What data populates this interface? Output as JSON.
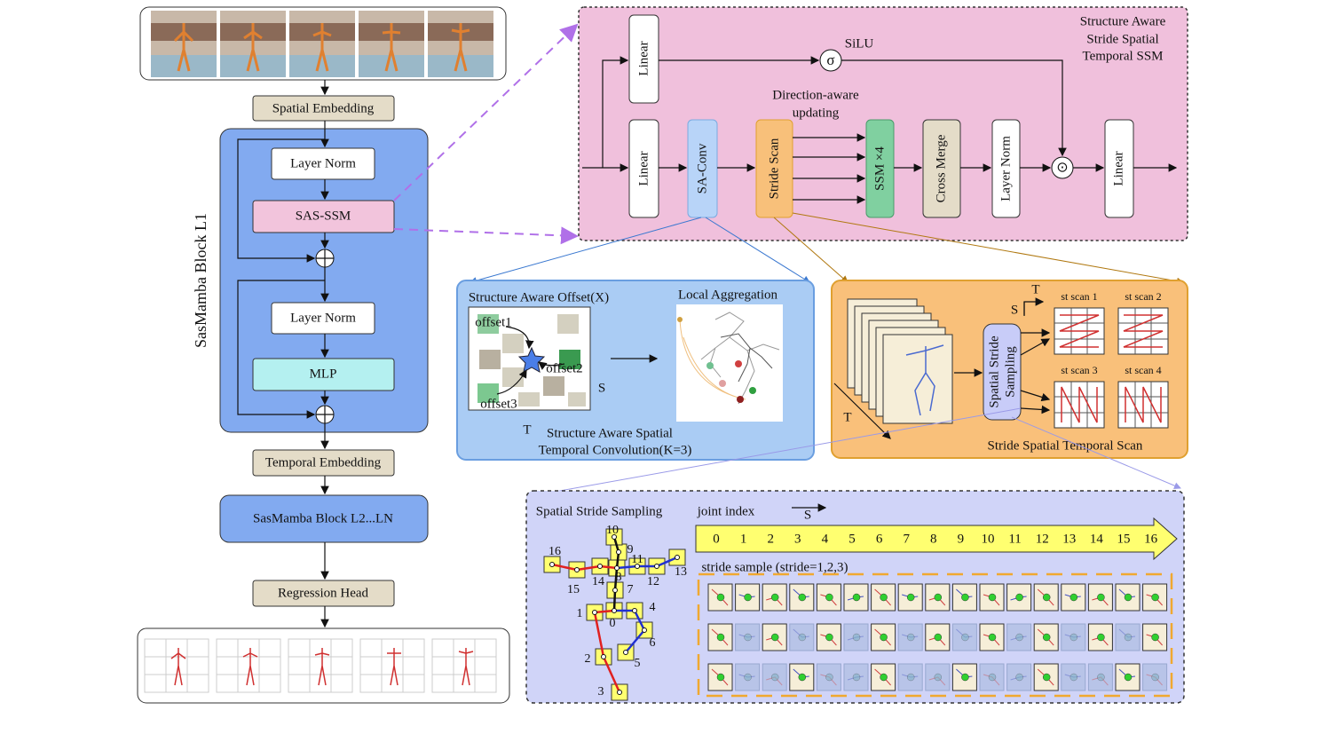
{
  "pipeline": {
    "spatial_embedding": "Spatial Embedding",
    "block_label": "SasMamba Block L1",
    "layer_norm_1": "Layer Norm",
    "sas_ssm": "SAS-SSM",
    "layer_norm_2": "Layer Norm",
    "mlp": "MLP",
    "temporal_embedding": "Temporal Embedding",
    "block_rest": "SasMamba Block L2...LN",
    "regression_head": "Regression Head"
  },
  "ssm_panel": {
    "title": [
      "Structure Aware",
      "Stride Spatial",
      "Temporal SSM"
    ],
    "linear_gate": "Linear",
    "sigma": "σ",
    "silu": "SiLU",
    "direction_note": [
      "Direction-aware",
      "updating"
    ],
    "linear_in": "Linear",
    "sa_conv": "SA-Conv",
    "stride_scan": "Stride Scan",
    "ssm": "SSM ×4",
    "cross_merge": "Cross Merge",
    "layer_norm": "Layer Norm",
    "product": "⊙",
    "linear_out": "Linear"
  },
  "conv_panel": {
    "offset_title": "Structure Aware Offset(X)",
    "aggregation_title": "Local Aggregation",
    "offsets": [
      "offset1",
      "offset2",
      "offset3"
    ],
    "s_axis": "S",
    "t_axis": "T",
    "caption": [
      "Structure Aware Spatial",
      "Temporal Convolution(K=3)"
    ]
  },
  "scan_panel": {
    "t_axis": "T",
    "s_axis": "S",
    "frames_axis": "T",
    "sampling": [
      "Spatial Stride",
      "Sampling"
    ],
    "scans": [
      "st scan 1",
      "st scan 2",
      "st scan 3",
      "st scan 4"
    ],
    "caption": "Stride Spatial Temporal Scan"
  },
  "sampling_panel": {
    "title": "Spatial Stride Sampling",
    "joint_index": "joint index",
    "s_axis": "S",
    "indices": [
      0,
      1,
      2,
      3,
      4,
      5,
      6,
      7,
      8,
      9,
      10,
      11,
      12,
      13,
      14,
      15,
      16
    ],
    "stride_caption": "stride sample (stride=1,2,3)",
    "skeleton_labels": [
      0,
      1,
      2,
      3,
      4,
      5,
      6,
      7,
      8,
      9,
      10,
      11,
      12,
      13,
      14,
      15,
      16
    ]
  }
}
